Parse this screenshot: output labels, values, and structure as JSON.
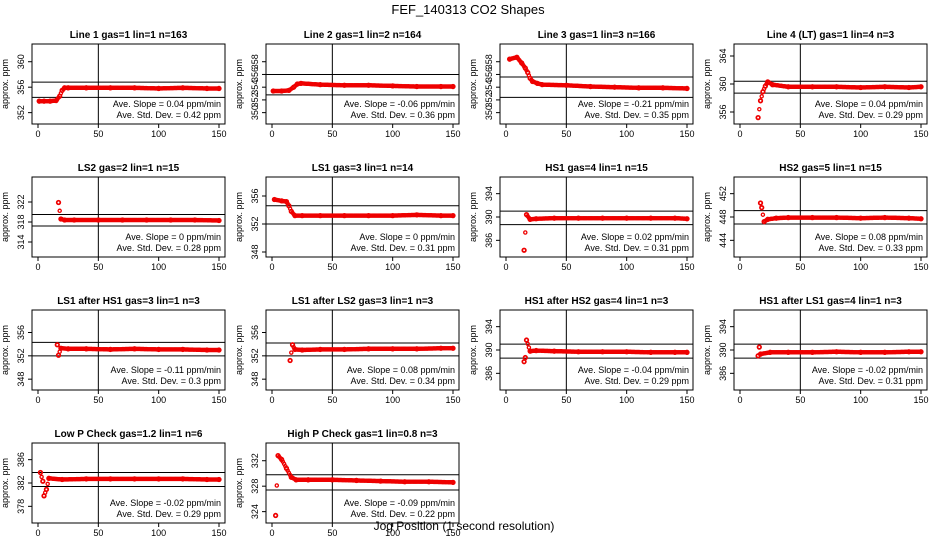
{
  "figure": {
    "title": "FEF_140313  CO2 Shapes",
    "xlabel": "Jog Position (1 second resolution)",
    "ylabel": "approx. ppm",
    "point_color": "#ee0000",
    "line_color": "#000000"
  },
  "chart_data": [
    {
      "type": "scatter",
      "title": "Line 1 gas=1 lin=1 n=163",
      "xlim": [
        0,
        150
      ],
      "ylim": [
        351,
        362
      ],
      "xticks": [
        0,
        50,
        100,
        150
      ],
      "yticks": [
        352,
        356,
        360
      ],
      "hlines": [
        354.4,
        356.8
      ],
      "slope": "Ave. Slope = 0.04  ppm/min",
      "std": "Ave. Std. Dev. = 0.42  ppm",
      "points": [
        [
          1,
          353.8
        ],
        [
          5,
          353.8
        ],
        [
          10,
          353.8
        ],
        [
          15,
          353.9
        ],
        [
          18,
          354.6
        ],
        [
          20,
          355.5
        ],
        [
          22,
          355.9
        ],
        [
          25,
          355.9
        ],
        [
          40,
          355.9
        ],
        [
          60,
          355.9
        ],
        [
          80,
          355.9
        ],
        [
          100,
          355.8
        ],
        [
          120,
          355.9
        ],
        [
          140,
          355.8
        ],
        [
          150,
          355.8
        ]
      ]
    },
    {
      "type": "scatter",
      "title": "Line 2 gas=1 lin=2 n=164",
      "xlim": [
        0,
        150
      ],
      "ylim": [
        349,
        360
      ],
      "xticks": [
        0,
        50,
        100,
        150
      ],
      "yticks": [
        350,
        352,
        354,
        356,
        358
      ],
      "hlines": [
        352.8,
        356.0
      ],
      "slope": "Ave. Slope = -0.06  ppm/min",
      "std": "Ave. Std. Dev. = 0.36  ppm",
      "points": [
        [
          1,
          353.4
        ],
        [
          8,
          353.4
        ],
        [
          14,
          353.5
        ],
        [
          18,
          354.0
        ],
        [
          21,
          354.5
        ],
        [
          24,
          354.6
        ],
        [
          40,
          354.4
        ],
        [
          60,
          354.3
        ],
        [
          80,
          354.3
        ],
        [
          100,
          354.2
        ],
        [
          120,
          354.1
        ],
        [
          140,
          354.1
        ],
        [
          150,
          354.1
        ]
      ]
    },
    {
      "type": "scatter",
      "title": "Line 3 gas=1 lin=3 n=166",
      "xlim": [
        0,
        150
      ],
      "ylim": [
        349,
        360
      ],
      "xticks": [
        0,
        50,
        100,
        150
      ],
      "yticks": [
        350,
        352,
        354,
        356,
        358
      ],
      "hlines": [
        352.4,
        355.6
      ],
      "slope": "Ave. Slope = -0.21  ppm/min",
      "std": "Ave. Std. Dev. = 0.35  ppm",
      "points": [
        [
          3,
          358.4
        ],
        [
          9,
          358.7
        ],
        [
          13,
          357.8
        ],
        [
          16,
          357.0
        ],
        [
          18,
          356.3
        ],
        [
          20,
          355.4
        ],
        [
          22,
          354.9
        ],
        [
          26,
          354.6
        ],
        [
          30,
          354.4
        ],
        [
          50,
          354.3
        ],
        [
          70,
          354.1
        ],
        [
          90,
          354.0
        ],
        [
          110,
          353.9
        ],
        [
          130,
          353.9
        ],
        [
          150,
          353.8
        ]
      ]
    },
    {
      "type": "scatter",
      "title": "Line 4 (LT) gas=1 lin=4 n=3",
      "xlim": [
        0,
        150
      ],
      "ylim": [
        355,
        365
      ],
      "xticks": [
        0,
        50,
        100,
        150
      ],
      "yticks": [
        356,
        360,
        364
      ],
      "hlines": [
        358.7,
        360.4
      ],
      "slope": "Ave. Slope = 0.04  ppm/min",
      "std": "Ave. Std. Dev. = 0.29  ppm",
      "points": [
        [
          15,
          355.2
        ],
        [
          17,
          357.6
        ],
        [
          19,
          358.9
        ],
        [
          21,
          359.7
        ],
        [
          23,
          360.3
        ],
        [
          27,
          359.9
        ],
        [
          40,
          359.6
        ],
        [
          60,
          359.6
        ],
        [
          80,
          359.6
        ],
        [
          100,
          359.5
        ],
        [
          120,
          359.6
        ],
        [
          140,
          359.5
        ],
        [
          150,
          359.6
        ]
      ]
    },
    {
      "type": "scatter",
      "title": "LS2 gas=2 lin=1 n=15",
      "xlim": [
        0,
        150
      ],
      "ylim": [
        312,
        326
      ],
      "xticks": [
        0,
        50,
        100,
        150
      ],
      "yticks": [
        314,
        318,
        322
      ],
      "hlines": [
        317.2,
        319.5
      ],
      "slope": "Ave. Slope = 0  ppm/min",
      "std": "Ave. Std. Dev. = 0.28  ppm",
      "points": [
        [
          17,
          321.9
        ],
        [
          19,
          318.6
        ],
        [
          22,
          318.4
        ],
        [
          30,
          318.4
        ],
        [
          50,
          318.4
        ],
        [
          70,
          318.4
        ],
        [
          90,
          318.4
        ],
        [
          110,
          318.4
        ],
        [
          130,
          318.4
        ],
        [
          150,
          318.3
        ]
      ]
    },
    {
      "type": "scatter",
      "title": "LS1 gas=3 lin=1 n=14",
      "xlim": [
        0,
        150
      ],
      "ylim": [
        348,
        358
      ],
      "xticks": [
        0,
        50,
        100,
        150
      ],
      "yticks": [
        348,
        352,
        356
      ],
      "hlines": [
        352.0,
        354.6
      ],
      "slope": "Ave. Slope = 0  ppm/min",
      "std": "Ave. Std. Dev. = 0.31  ppm",
      "points": [
        [
          2,
          355.5
        ],
        [
          8,
          355.3
        ],
        [
          12,
          355.2
        ],
        [
          14,
          354.6
        ],
        [
          16,
          353.8
        ],
        [
          19,
          353.2
        ],
        [
          25,
          353.2
        ],
        [
          40,
          353.2
        ],
        [
          60,
          353.2
        ],
        [
          80,
          353.2
        ],
        [
          100,
          353.2
        ],
        [
          120,
          353.3
        ],
        [
          140,
          353.2
        ],
        [
          150,
          353.2
        ]
      ]
    },
    {
      "type": "scatter",
      "title": "HS1 gas=4 lin=1 n=15",
      "xlim": [
        0,
        150
      ],
      "ylim": [
        384,
        396
      ],
      "xticks": [
        0,
        50,
        100,
        150
      ],
      "yticks": [
        386,
        390,
        394
      ],
      "hlines": [
        388.7,
        391.0
      ],
      "slope": "Ave. Slope = 0.02  ppm/min",
      "std": "Ave. Std. Dev. = 0.31  ppm",
      "points": [
        [
          15,
          384.3
        ],
        [
          17,
          390.4
        ],
        [
          20,
          389.6
        ],
        [
          25,
          389.7
        ],
        [
          40,
          389.8
        ],
        [
          60,
          389.8
        ],
        [
          80,
          389.8
        ],
        [
          100,
          389.8
        ],
        [
          120,
          389.8
        ],
        [
          140,
          389.8
        ],
        [
          150,
          389.7
        ]
      ]
    },
    {
      "type": "scatter",
      "title": "HS2 gas=5 lin=1 n=15",
      "xlim": [
        0,
        150
      ],
      "ylim": [
        442,
        454
      ],
      "xticks": [
        0,
        50,
        100,
        150
      ],
      "yticks": [
        444,
        448,
        452
      ],
      "hlines": [
        446.8,
        449.1
      ],
      "slope": "Ave. Slope = 0.08  ppm/min",
      "std": "Ave. Std. Dev. = 0.33  ppm",
      "points": [
        [
          17,
          450.4
        ],
        [
          18,
          449.6
        ],
        [
          20,
          447.2
        ],
        [
          23,
          447.6
        ],
        [
          30,
          447.8
        ],
        [
          40,
          447.9
        ],
        [
          60,
          447.9
        ],
        [
          80,
          447.9
        ],
        [
          100,
          447.8
        ],
        [
          120,
          447.9
        ],
        [
          140,
          447.8
        ],
        [
          150,
          447.7
        ]
      ]
    },
    {
      "type": "scatter",
      "title": "LS1 after HS1 gas=3 lin=1 n=3",
      "xlim": [
        0,
        150
      ],
      "ylim": [
        347,
        359
      ],
      "xticks": [
        0,
        50,
        100,
        150
      ],
      "yticks": [
        348,
        352,
        356
      ],
      "hlines": [
        352.0,
        354.3
      ],
      "slope": "Ave. Slope = -0.11  ppm/min",
      "std": "Ave. Std. Dev. = 0.3  ppm",
      "points": [
        [
          16,
          353.9
        ],
        [
          17,
          352.1
        ],
        [
          19,
          353.3
        ],
        [
          25,
          353.2
        ],
        [
          40,
          353.2
        ],
        [
          60,
          353.1
        ],
        [
          80,
          353.2
        ],
        [
          100,
          353.1
        ],
        [
          120,
          353.1
        ],
        [
          140,
          353.0
        ],
        [
          150,
          353.0
        ]
      ]
    },
    {
      "type": "scatter",
      "title": "LS1 after LS2 gas=3 lin=1 n=3",
      "xlim": [
        0,
        150
      ],
      "ylim": [
        347,
        359
      ],
      "xticks": [
        0,
        50,
        100,
        150
      ],
      "yticks": [
        348,
        352,
        356
      ],
      "hlines": [
        352.0,
        354.2
      ],
      "slope": "Ave. Slope = 0.08  ppm/min",
      "std": "Ave. Std. Dev. = 0.34  ppm",
      "points": [
        [
          15,
          351.2
        ],
        [
          17,
          353.9
        ],
        [
          19,
          353.1
        ],
        [
          25,
          353.0
        ],
        [
          40,
          353.1
        ],
        [
          60,
          353.1
        ],
        [
          80,
          353.2
        ],
        [
          100,
          353.2
        ],
        [
          120,
          353.2
        ],
        [
          140,
          353.3
        ],
        [
          150,
          353.3
        ]
      ]
    },
    {
      "type": "scatter",
      "title": "HS1 after HS2 gas=4 lin=1 n=3",
      "xlim": [
        0,
        150
      ],
      "ylim": [
        384,
        396
      ],
      "xticks": [
        0,
        50,
        100,
        150
      ],
      "yticks": [
        386,
        390,
        394
      ],
      "hlines": [
        388.6,
        391.0
      ],
      "slope": "Ave. Slope = -0.04  ppm/min",
      "std": "Ave. Std. Dev. = 0.29  ppm",
      "points": [
        [
          15,
          388.0
        ],
        [
          16,
          388.7
        ],
        [
          17,
          391.7
        ],
        [
          20,
          389.8
        ],
        [
          25,
          389.9
        ],
        [
          40,
          389.8
        ],
        [
          60,
          389.7
        ],
        [
          80,
          389.7
        ],
        [
          100,
          389.7
        ],
        [
          120,
          389.6
        ],
        [
          140,
          389.6
        ],
        [
          150,
          389.6
        ]
      ]
    },
    {
      "type": "scatter",
      "title": "HS1 after LS1 gas=4 lin=1 n=3",
      "xlim": [
        0,
        150
      ],
      "ylim": [
        384,
        396
      ],
      "xticks": [
        0,
        50,
        100,
        150
      ],
      "yticks": [
        386,
        390,
        394
      ],
      "hlines": [
        388.6,
        391.0
      ],
      "slope": "Ave. Slope = -0.02  ppm/min",
      "std": "Ave. Std. Dev. = 0.31  ppm",
      "points": [
        [
          15,
          389.0
        ],
        [
          16,
          390.5
        ],
        [
          17,
          389.3
        ],
        [
          25,
          389.6
        ],
        [
          40,
          389.6
        ],
        [
          60,
          389.6
        ],
        [
          80,
          389.7
        ],
        [
          100,
          389.6
        ],
        [
          120,
          389.6
        ],
        [
          140,
          389.7
        ],
        [
          150,
          389.7
        ]
      ]
    },
    {
      "type": "scatter",
      "title": "Low P Check gas=1.2 lin=1 n=6",
      "xlim": [
        0,
        150
      ],
      "ylim": [
        376,
        388
      ],
      "xticks": [
        0,
        50,
        100,
        150
      ],
      "yticks": [
        378,
        382,
        386
      ],
      "hlines": [
        381.4,
        383.8
      ],
      "slope": "Ave. Slope = -0.02  ppm/min",
      "std": "Ave. Std. Dev. = 0.29  ppm",
      "points": [
        [
          2,
          383.8
        ],
        [
          4,
          382.3
        ],
        [
          5,
          379.8
        ],
        [
          7,
          380.9
        ],
        [
          9,
          382.8
        ],
        [
          20,
          382.6
        ],
        [
          40,
          382.7
        ],
        [
          60,
          382.7
        ],
        [
          80,
          382.7
        ],
        [
          100,
          382.7
        ],
        [
          120,
          382.7
        ],
        [
          140,
          382.6
        ],
        [
          150,
          382.6
        ]
      ]
    },
    {
      "type": "scatter",
      "title": "High P Check gas=1 lin=0.8 n=3",
      "xlim": [
        0,
        150
      ],
      "ylim": [
        323,
        334
      ],
      "xticks": [
        0,
        50,
        100,
        150
      ],
      "yticks": [
        324,
        328,
        332
      ],
      "hlines": [
        327.4,
        329.8
      ],
      "slope": "Ave. Slope = -0.09  ppm/min",
      "std": "Ave. Std. Dev. = 0.22  ppm",
      "points": [
        [
          3,
          323.4
        ],
        [
          5,
          332.8
        ],
        [
          8,
          332.2
        ],
        [
          12,
          330.8
        ],
        [
          16,
          329.4
        ],
        [
          20,
          329.0
        ],
        [
          30,
          329.0
        ],
        [
          50,
          329.0
        ],
        [
          70,
          328.9
        ],
        [
          90,
          328.8
        ],
        [
          110,
          328.7
        ],
        [
          130,
          328.7
        ],
        [
          150,
          328.6
        ]
      ]
    }
  ]
}
